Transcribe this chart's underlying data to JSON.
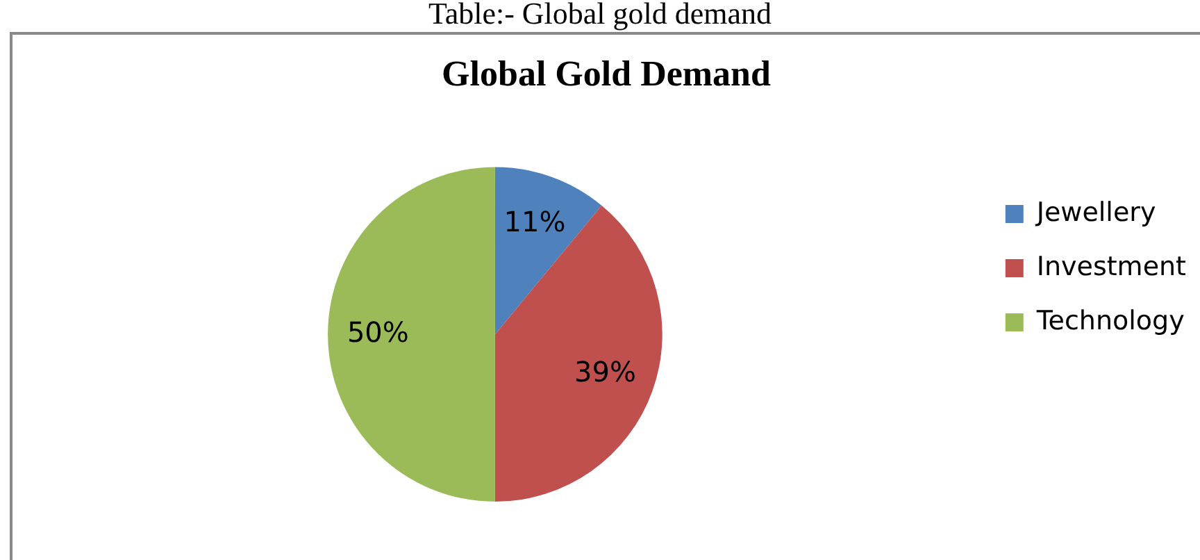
{
  "chart_data": {
    "type": "pie",
    "title": "Global Gold Demand",
    "annotations": [
      "Table:- Global gold demand"
    ],
    "categories": [
      "Jewellery",
      "Investment",
      "Technology"
    ],
    "values": [
      11,
      39,
      50
    ],
    "colors": [
      "#4f81bd",
      "#c0504d",
      "#9bbb59"
    ],
    "value_labels": [
      "11%",
      "39%",
      "50%"
    ],
    "legend": "right"
  }
}
